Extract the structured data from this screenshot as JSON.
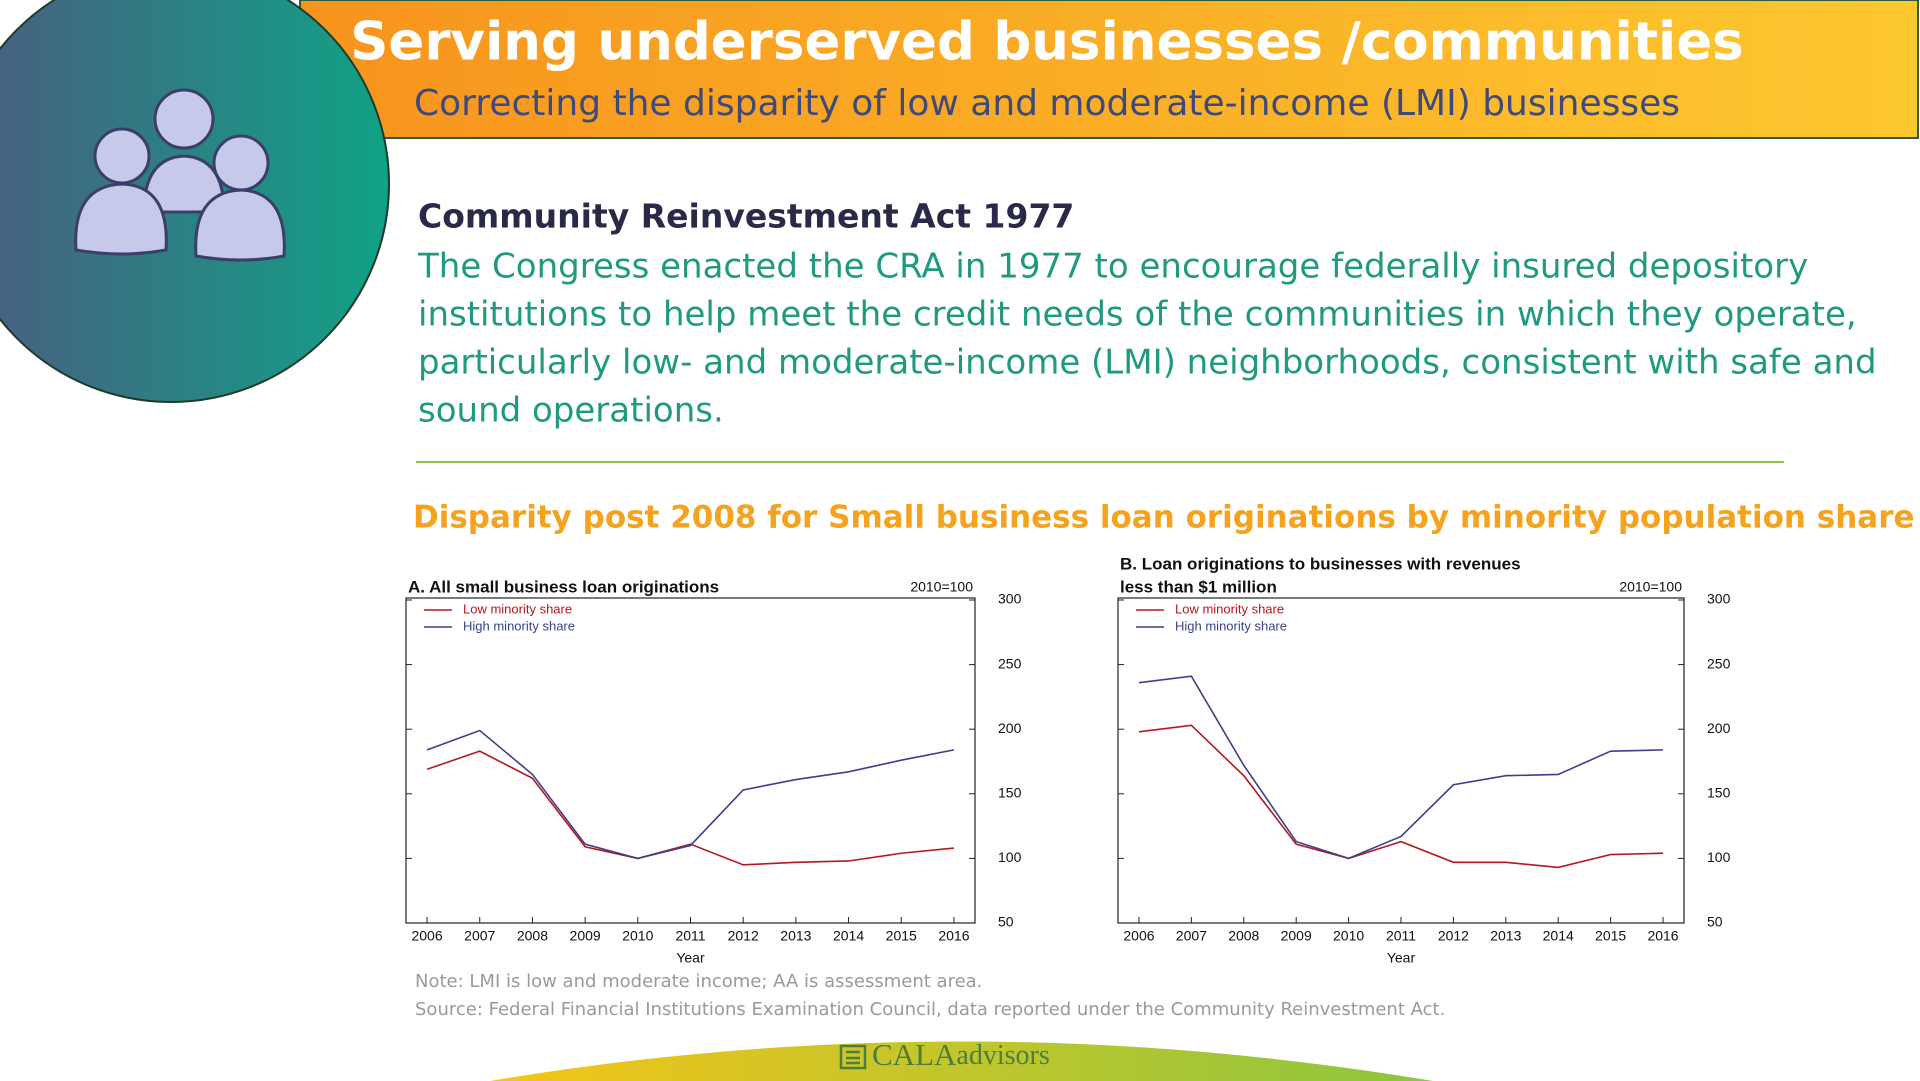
{
  "header": {
    "title": "Serving underserved businesses /communities",
    "subtitle": "Correcting the disparity of low and moderate-income (LMI) businesses"
  },
  "section": {
    "heading": "Community Reinvestment Act 1977",
    "body_lines": [
      "The Congress enacted the CRA in 1977 to encourage federally insured depository",
      "institutions to help meet the credit needs of the communities in which they operate,",
      "particularly low- and moderate-income (LMI) neighborhoods, consistent with safe and",
      "sound operations."
    ]
  },
  "charts_title": "Disparity post 2008 for Small business loan originations by minority population share",
  "chart_data": [
    {
      "type": "line",
      "title": [
        "A. All small business loan originations"
      ],
      "annotation": "2010=100",
      "xlabel": "Year",
      "x": [
        2006,
        2007,
        2008,
        2009,
        2010,
        2011,
        2012,
        2013,
        2014,
        2015,
        2016
      ],
      "xlim": [
        2005.6,
        2016.4
      ],
      "xticks": [
        2006,
        2007,
        2008,
        2009,
        2010,
        2011,
        2012,
        2013,
        2014,
        2015,
        2016
      ],
      "ylim": [
        50,
        300
      ],
      "yticks": [
        50,
        100,
        150,
        200,
        250,
        300
      ],
      "legend": "upper left",
      "series": [
        {
          "name": "Low minority share",
          "color": "#b3191e",
          "values": [
            169,
            183,
            162,
            109,
            100,
            111,
            95,
            97,
            98,
            104,
            108
          ]
        },
        {
          "name": "High minority share",
          "color": "#3d3f8c",
          "values": [
            184,
            199,
            165,
            111,
            100,
            110,
            153,
            161,
            167,
            176,
            184
          ]
        }
      ]
    },
    {
      "type": "line",
      "title": [
        "B. Loan originations to businesses with revenues",
        "less than $1 million"
      ],
      "annotation": "2010=100",
      "xlabel": "Year",
      "x": [
        2006,
        2007,
        2008,
        2009,
        2010,
        2011,
        2012,
        2013,
        2014,
        2015,
        2016
      ],
      "xlim": [
        2005.6,
        2016.4
      ],
      "xticks": [
        2006,
        2007,
        2008,
        2009,
        2010,
        2011,
        2012,
        2013,
        2014,
        2015,
        2016
      ],
      "ylim": [
        50,
        300
      ],
      "yticks": [
        50,
        100,
        150,
        200,
        250,
        300
      ],
      "legend": "upper left",
      "series": [
        {
          "name": "Low minority share",
          "color": "#b3191e",
          "values": [
            198,
            203,
            164,
            111,
            100,
            113,
            97,
            97,
            93,
            103,
            104
          ]
        },
        {
          "name": "High minority share",
          "color": "#3d3f8c",
          "values": [
            236,
            241,
            172,
            113,
            100,
            117,
            157,
            164,
            165,
            183,
            184
          ]
        }
      ]
    }
  ],
  "note": "Note: LMI is low and moderate income; AA is assessment area.",
  "source": "Source: Federal Financial Institutions Examination Council, data reported under the Community Reinvestment Act.",
  "logo": {
    "brand": "CALA",
    "suffix": "advisors"
  }
}
